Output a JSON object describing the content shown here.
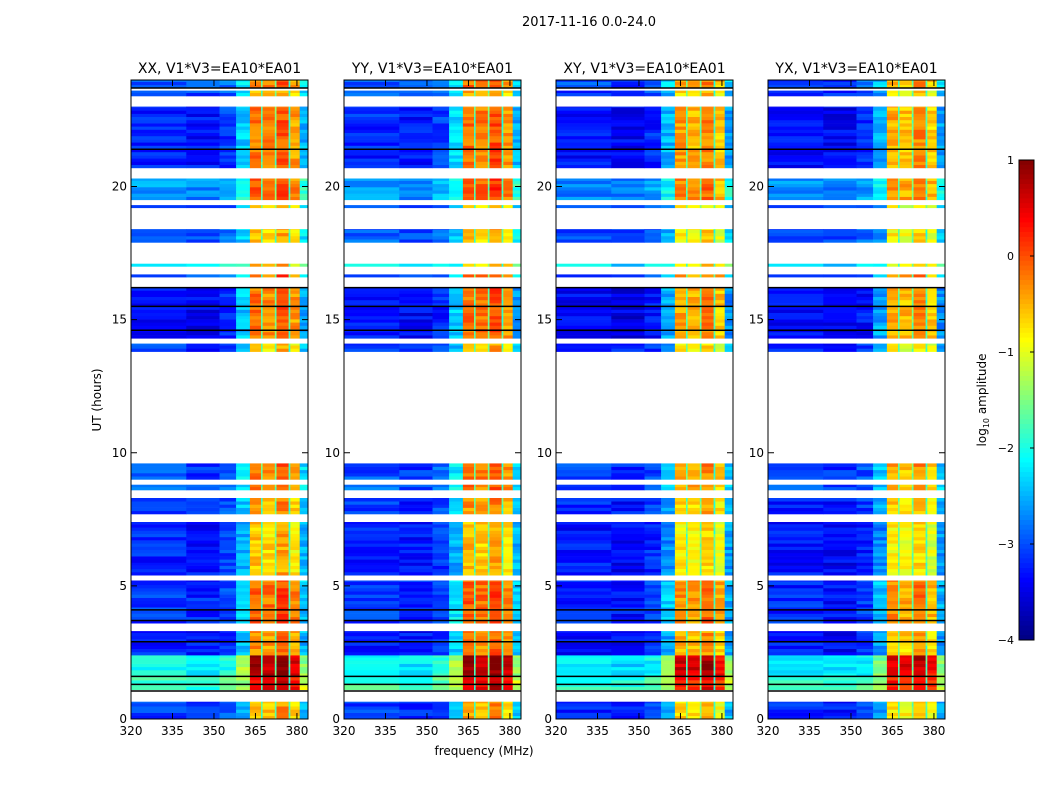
{
  "chart_data": {
    "type": "heatmap",
    "title": "2017-11-16 0.0-24.0",
    "xlabel": "frequency (MHz)",
    "ylabel": "UT (hours)",
    "xlim": [
      320,
      384
    ],
    "ylim": [
      0,
      24
    ],
    "xticks": [
      "320",
      "335",
      "350",
      "365",
      "380"
    ],
    "xtick_values": [
      320,
      335,
      350,
      365,
      380
    ],
    "yticks": [
      "0",
      "5",
      "10",
      "15",
      "20"
    ],
    "ytick_values": [
      0,
      5,
      10,
      15,
      20
    ],
    "panels": [
      {
        "title": "XX, V1*V3=EA10*EA01",
        "high_offset": 0.1,
        "low_offset": 0.0
      },
      {
        "title": "YY, V1*V3=EA10*EA01",
        "high_offset": 0.15,
        "low_offset": 0.0
      },
      {
        "title": "XY, V1*V3=EA10*EA01",
        "high_offset": -0.1,
        "low_offset": -0.1
      },
      {
        "title": "YX, V1*V3=EA10*EA01",
        "high_offset": -0.15,
        "low_offset": -0.1
      }
    ],
    "time_bands": [
      {
        "t": [
          0.0,
          0.65
        ],
        "low": -3.2,
        "high": -0.6
      },
      {
        "t": [
          1.1,
          1.6
        ],
        "low": -1.9,
        "high": 0.4
      },
      {
        "t": [
          1.6,
          2.4
        ],
        "low": -2.2,
        "high": 0.7
      },
      {
        "t": [
          2.4,
          3.3
        ],
        "low": -3.3,
        "high": -0.4
      },
      {
        "t": [
          3.6,
          5.2
        ],
        "low": -3.2,
        "high": -0.2
      },
      {
        "t": [
          5.4,
          7.4
        ],
        "low": -3.3,
        "high": -0.7
      },
      {
        "t": [
          7.7,
          8.3
        ],
        "low": -3.2,
        "high": -0.5
      },
      {
        "t": [
          8.6,
          8.8
        ],
        "low": -3.0,
        "high": -0.3
      },
      {
        "t": [
          9.0,
          9.6
        ],
        "low": -3.1,
        "high": -0.3
      },
      {
        "t": [
          13.8,
          14.1
        ],
        "low": -3.2,
        "high": -0.7
      },
      {
        "t": [
          14.3,
          16.2
        ],
        "low": -3.4,
        "high": -0.3
      },
      {
        "t": [
          16.6,
          16.7
        ],
        "low": -3.0,
        "high": -0.2
      },
      {
        "t": [
          17.0,
          17.1
        ],
        "low": -2.2,
        "high": -0.7
      },
      {
        "t": [
          17.9,
          18.4
        ],
        "low": -3.0,
        "high": -0.7
      },
      {
        "t": [
          19.2,
          19.3
        ],
        "low": -3.1,
        "high": -0.8
      },
      {
        "t": [
          19.5,
          20.3
        ],
        "low": -2.7,
        "high": -0.2
      },
      {
        "t": [
          20.7,
          23.0
        ],
        "low": -3.3,
        "high": -0.3
      },
      {
        "t": [
          23.4,
          23.6
        ],
        "low": -3.1,
        "high": -0.6
      },
      {
        "t": [
          23.7,
          24.0
        ],
        "low": -3.0,
        "high": -0.3
      }
    ],
    "black_lines_hours": [
      1.05,
      1.3,
      1.6,
      2.9,
      3.7,
      4.1,
      14.6,
      15.5,
      16.2,
      21.4,
      23.7
    ],
    "colorbar": {
      "label": "log",
      "label_sub": "10",
      "label_rest": " amplitude",
      "range": [
        -4,
        1
      ],
      "ticks": [
        "1",
        "0",
        "−1",
        "−2",
        "−3",
        "−4"
      ],
      "tick_values": [
        1,
        0,
        -1,
        -2,
        -3,
        -4
      ],
      "colormap": "jet"
    }
  }
}
